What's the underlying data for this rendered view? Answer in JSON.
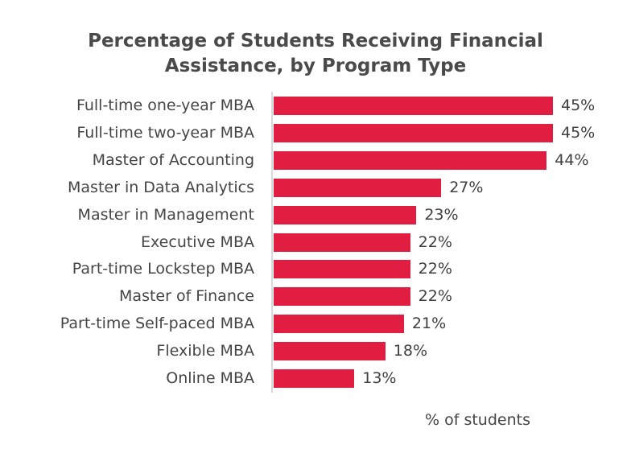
{
  "chart_data": {
    "type": "bar",
    "orientation": "horizontal",
    "title": "Percentage of Students Receiving Financial Assistance, by Program Type",
    "title_lines": [
      "Percentage of Students Receiving Financial",
      "Assistance, by Program Type"
    ],
    "xlabel": "% of students",
    "ylabel": "",
    "categories": [
      "Full-time one-year MBA",
      "Full-time two-year MBA",
      "Master of Accounting",
      "Master in Data Analytics",
      "Master in Management",
      "Executive MBA",
      "Part-time Lockstep MBA",
      "Master of Finance",
      "Part-time Self-paced MBA",
      "Flexible MBA",
      "Online MBA"
    ],
    "values": [
      45,
      45,
      44,
      27,
      23,
      22,
      22,
      22,
      21,
      18,
      13
    ],
    "value_labels": [
      "45%",
      "45%",
      "44%",
      "27%",
      "23%",
      "22%",
      "22%",
      "22%",
      "21%",
      "18%",
      "13%"
    ],
    "bar_color": "#e21d42",
    "grid": false,
    "legend": null,
    "xlim": [
      0,
      45
    ]
  }
}
